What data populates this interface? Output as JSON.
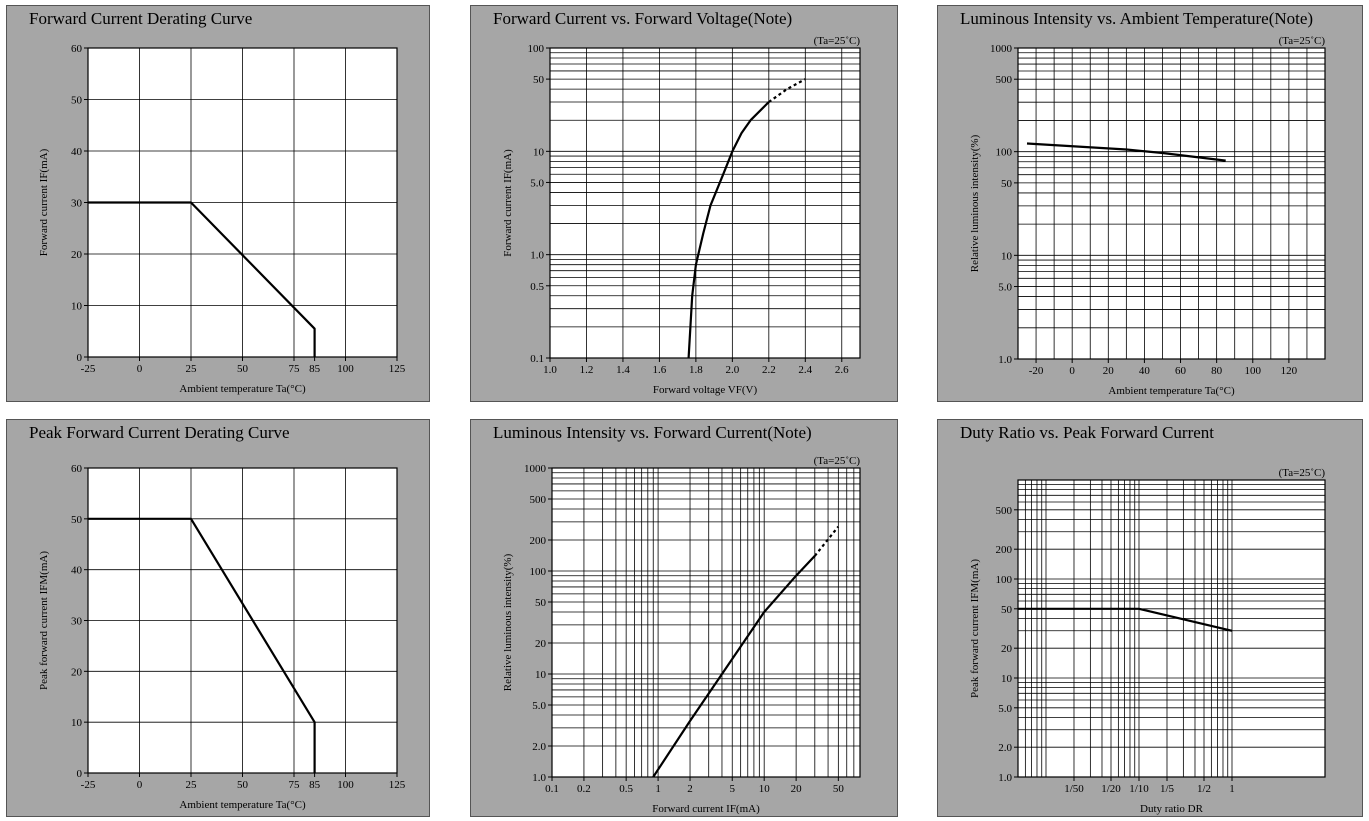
{
  "colors": {
    "panel_bg": "#a6a6a6",
    "plot_bg": "#ffffff",
    "grid": "#000000",
    "curve": "#000000"
  },
  "chart_data": [
    {
      "id": "p1",
      "type": "line",
      "title": "Forward Current Derating Curve",
      "note": "",
      "xlabel": "Ambient temperature Ta(°C)",
      "ylabel": "Forward current IF(mA)",
      "xscale": "linear",
      "yscale": "linear",
      "xlim": [
        -25,
        125
      ],
      "ylim": [
        0,
        60
      ],
      "xticks": [
        -25,
        0,
        25,
        50,
        75,
        85,
        100,
        125
      ],
      "xticklabels": [
        "-25",
        "0",
        "25",
        "50",
        "75",
        "85",
        "100",
        "125"
      ],
      "yticks": [
        0,
        10,
        20,
        30,
        40,
        50,
        60
      ],
      "yticklabels": [
        "0",
        "10",
        "20",
        "30",
        "40",
        "50",
        "60"
      ],
      "xgrid": [
        0,
        25,
        50,
        75,
        100
      ],
      "ygrid": [
        10,
        20,
        30,
        40,
        50
      ],
      "series": [
        {
          "points": [
            [
              -25,
              30
            ],
            [
              25,
              30
            ],
            [
              85,
              5.5
            ],
            [
              85,
              0
            ]
          ]
        }
      ]
    },
    {
      "id": "p2",
      "type": "line",
      "title": "Forward Current vs. Forward Voltage(Note)",
      "note": "(Ta=25˚C)",
      "xlabel": "Forward voltage VF(V)",
      "ylabel": "Forward current IF(mA)",
      "xscale": "linear",
      "yscale": "log",
      "xlim": [
        1.0,
        2.7
      ],
      "ylim": [
        0.1,
        100
      ],
      "xticks": [
        1.0,
        1.2,
        1.4,
        1.6,
        1.8,
        2.0,
        2.2,
        2.4,
        2.6
      ],
      "xticklabels": [
        "1.0",
        "1.2",
        "1.4",
        "1.6",
        "1.8",
        "2.0",
        "2.2",
        "2.4",
        "2.6"
      ],
      "yticks": [
        0.1,
        0.5,
        1,
        5,
        10,
        50,
        100
      ],
      "yticklabels": [
        "0.1",
        "0.5",
        "1.0",
        "5.0",
        "10",
        "50",
        "100"
      ],
      "xgrid": [
        1.2,
        1.4,
        1.6,
        1.8,
        2.0,
        2.2,
        2.4,
        2.6
      ],
      "ygrid": [
        0.2,
        0.3,
        0.4,
        0.5,
        0.6,
        0.7,
        0.8,
        0.9,
        1,
        2,
        3,
        4,
        5,
        6,
        7,
        8,
        9,
        10,
        20,
        30,
        40,
        50,
        60,
        70,
        80,
        90
      ],
      "series": [
        {
          "points": [
            [
              1.76,
              0.1
            ],
            [
              1.77,
              0.2
            ],
            [
              1.78,
              0.4
            ],
            [
              1.8,
              0.8
            ],
            [
              1.84,
              1.6
            ],
            [
              1.88,
              3
            ],
            [
              1.95,
              6
            ],
            [
              2.0,
              10
            ],
            [
              2.05,
              15
            ],
            [
              2.1,
              20
            ],
            [
              2.2,
              30
            ]
          ]
        },
        {
          "dashed": true,
          "points": [
            [
              2.2,
              30
            ],
            [
              2.3,
              40
            ],
            [
              2.4,
              50
            ]
          ]
        }
      ]
    },
    {
      "id": "p3",
      "type": "line",
      "title": "Luminous Intensity vs. Ambient Temperature(Note)",
      "note": "(Ta=25˚C)",
      "xlabel": "Ambient temperature Ta(°C)",
      "ylabel": "Relative luminous intensity(%)",
      "xscale": "linear",
      "yscale": "log",
      "xlim": [
        -30,
        140
      ],
      "ylim": [
        1,
        1000
      ],
      "xticks": [
        -20,
        0,
        20,
        40,
        60,
        80,
        100,
        120
      ],
      "xticklabels": [
        "-20",
        "0",
        "20",
        "40",
        "60",
        "80",
        "100",
        "120"
      ],
      "yticks": [
        1,
        5,
        10,
        50,
        100,
        500,
        1000
      ],
      "yticklabels": [
        "1.0",
        "5.0",
        "10",
        "50",
        "100",
        "500",
        "1000"
      ],
      "xgrid": [
        -20,
        -10,
        0,
        10,
        20,
        30,
        40,
        50,
        60,
        70,
        80,
        90,
        100,
        110,
        120,
        130
      ],
      "ygrid": [
        2,
        3,
        4,
        5,
        6,
        7,
        8,
        9,
        10,
        20,
        30,
        40,
        50,
        60,
        70,
        80,
        90,
        100,
        200,
        300,
        400,
        500,
        600,
        700,
        800,
        900
      ],
      "series": [
        {
          "points": [
            [
              -25,
              120
            ],
            [
              30,
              105
            ],
            [
              50,
              97
            ],
            [
              85,
              82
            ]
          ]
        }
      ]
    },
    {
      "id": "p4",
      "type": "line",
      "title": "Peak Forward Current Derating Curve",
      "note": "",
      "xlabel": "Ambient temperature Ta(°C)",
      "ylabel": "Peak forward current IFM(mA)",
      "xscale": "linear",
      "yscale": "linear",
      "xlim": [
        -25,
        125
      ],
      "ylim": [
        0,
        60
      ],
      "xticks": [
        -25,
        0,
        25,
        50,
        75,
        85,
        100,
        125
      ],
      "xticklabels": [
        "-25",
        "0",
        "25",
        "50",
        "75",
        "85",
        "100",
        "125"
      ],
      "yticks": [
        0,
        10,
        20,
        30,
        40,
        50,
        60
      ],
      "yticklabels": [
        "0",
        "10",
        "20",
        "30",
        "40",
        "50",
        "60"
      ],
      "xgrid": [
        0,
        25,
        50,
        75,
        100
      ],
      "ygrid": [
        10,
        20,
        30,
        40,
        50
      ],
      "series": [
        {
          "points": [
            [
              -25,
              50
            ],
            [
              25,
              50
            ],
            [
              85,
              10
            ],
            [
              85,
              0
            ]
          ]
        }
      ]
    },
    {
      "id": "p5",
      "type": "line",
      "title": "Luminous Intensity vs. Forward Current(Note)",
      "note": "(Ta=25˚C)",
      "xlabel": "Forward current IF(mA)",
      "ylabel": "Relative luminous intensity(%)",
      "xscale": "log",
      "yscale": "log",
      "xlim": [
        0.1,
        80
      ],
      "ylim": [
        1,
        1000
      ],
      "xticks": [
        0.1,
        0.2,
        0.5,
        1,
        2,
        5,
        10,
        20,
        50
      ],
      "xticklabels": [
        "0.1",
        "0.2",
        "0.5",
        "1",
        "2",
        "5",
        "10",
        "20",
        "50"
      ],
      "yticks": [
        1,
        2,
        5,
        10,
        20,
        50,
        100,
        200,
        500,
        1000
      ],
      "yticklabels": [
        "1.0",
        "2.0",
        "5.0",
        "10",
        "20",
        "50",
        "100",
        "200",
        "500",
        "1000"
      ],
      "xgrid": [
        0.2,
        0.3,
        0.4,
        0.5,
        0.6,
        0.7,
        0.8,
        0.9,
        1,
        2,
        3,
        4,
        5,
        6,
        7,
        8,
        9,
        10,
        20,
        30,
        40,
        50,
        60,
        70
      ],
      "ygrid": [
        2,
        3,
        4,
        5,
        6,
        7,
        8,
        9,
        10,
        20,
        30,
        40,
        50,
        60,
        70,
        80,
        90,
        100,
        200,
        300,
        400,
        500,
        600,
        700,
        800,
        900
      ],
      "series": [
        {
          "points": [
            [
              0.9,
              1
            ],
            [
              2,
              3.5
            ],
            [
              10,
              40
            ],
            [
              20,
              90
            ],
            [
              30,
              140
            ]
          ]
        },
        {
          "dashed": true,
          "points": [
            [
              30,
              140
            ],
            [
              50,
              270
            ]
          ]
        }
      ]
    },
    {
      "id": "p6",
      "type": "line",
      "title": "Duty Ratio vs. Peak Forward Current",
      "note": "(Ta=25˚C)",
      "xlabel": "Duty ratio DR",
      "ylabel": "Peak forward current IFM(mA)",
      "xscale": "log",
      "yscale": "log",
      "xlim": [
        0.005,
        10
      ],
      "ylim": [
        1,
        1000
      ],
      "xticks": [
        0.02,
        0.05,
        0.1,
        0.2,
        0.5,
        1
      ],
      "xticklabels": [
        "1/50",
        "1/20",
        "1/10",
        "1/5",
        "1/2",
        "1"
      ],
      "yticks": [
        1,
        2,
        5,
        10,
        20,
        50,
        100,
        200,
        500
      ],
      "yticklabels": [
        "1.0",
        "2.0",
        "5.0",
        "10",
        "20",
        "50",
        "100",
        "200",
        "500"
      ],
      "xgrid": [
        0.006,
        0.007,
        0.008,
        0.009,
        0.01,
        0.02,
        0.03,
        0.04,
        0.05,
        0.06,
        0.07,
        0.08,
        0.09,
        0.1,
        0.2,
        0.3,
        0.4,
        0.5,
        0.6,
        0.7,
        0.8,
        0.9,
        1
      ],
      "ygrid": [
        2,
        3,
        4,
        5,
        6,
        7,
        8,
        9,
        10,
        20,
        30,
        40,
        50,
        60,
        70,
        80,
        90,
        100,
        200,
        300,
        400,
        500,
        600,
        700,
        800,
        900
      ],
      "series": [
        {
          "points": [
            [
              0.005,
              50
            ],
            [
              0.1,
              50
            ],
            [
              1,
              30
            ]
          ]
        }
      ]
    }
  ]
}
